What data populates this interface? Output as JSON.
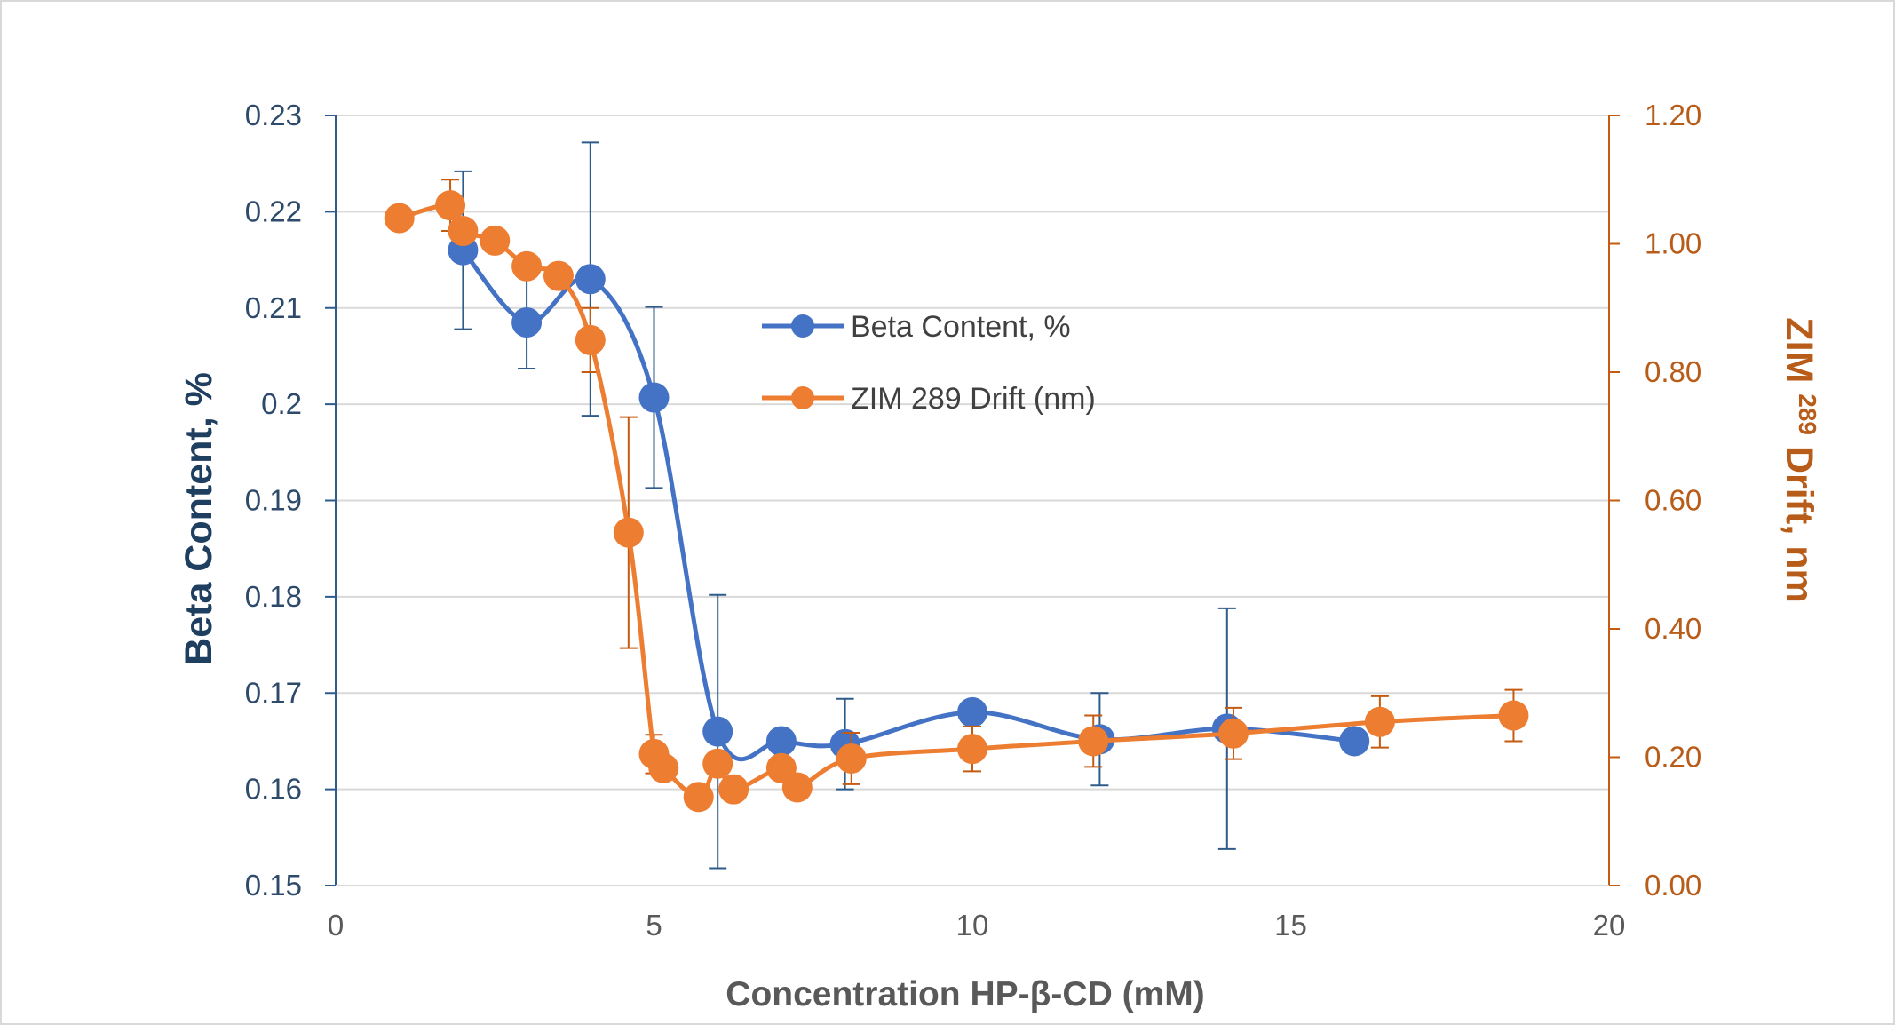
{
  "chart_data": {
    "type": "line",
    "title": "",
    "xlabel": "Concentration HP-β-CD (mM)",
    "ylabel_left": "Beta Content, %",
    "ylabel_right": "ZIM 289 Drift, nm",
    "ylabel_right_parts": {
      "prefix": "ZIM ",
      "superscript": "289",
      "suffix": " Drift, nm"
    },
    "xlim": [
      0,
      20
    ],
    "ylim_left": [
      0.15,
      0.23
    ],
    "ylim_right": [
      0.0,
      1.2
    ],
    "x_ticks": [
      "0",
      "5",
      "10",
      "15",
      "20"
    ],
    "y_left_ticks": [
      "0.15",
      "0.16",
      "0.17",
      "0.18",
      "0.19",
      "0.2",
      "0.21",
      "0.22",
      "0.23"
    ],
    "y_right_ticks": [
      "0.00",
      "0.20",
      "0.40",
      "0.60",
      "0.80",
      "1.00",
      "1.20"
    ],
    "grid": "horizontal",
    "legend_position": "center",
    "series": [
      {
        "name": "Beta Content, %",
        "axis": "left",
        "color": "#4472c4",
        "x": [
          2,
          3,
          4,
          5,
          6,
          7,
          8,
          10,
          12,
          14,
          16
        ],
        "y": [
          0.216,
          0.2085,
          0.213,
          0.2007,
          0.166,
          0.165,
          0.1647,
          0.168,
          0.1652,
          0.1663,
          0.165
        ],
        "error": [
          0.0082,
          0.0048,
          0.0142,
          0.0094,
          0.0142,
          null,
          0.0047,
          null,
          0.0048,
          0.0125,
          null
        ]
      },
      {
        "name": "ZIM 289 Drift (nm)",
        "axis": "right",
        "color": "#ed7d31",
        "error_color": "#c55a11",
        "x": [
          1.0,
          1.8,
          2.0,
          2.5,
          3.0,
          3.5,
          4.0,
          4.6,
          5.0,
          5.15,
          5.7,
          6.0,
          6.25,
          7.0,
          7.25,
          8.1,
          10.0,
          11.9,
          14.1,
          16.4,
          18.5
        ],
        "y": [
          1.04,
          1.06,
          1.02,
          1.005,
          0.965,
          0.95,
          0.85,
          0.55,
          0.205,
          0.183,
          0.138,
          0.19,
          0.15,
          0.183,
          0.153,
          0.198,
          0.213,
          0.225,
          0.237,
          0.255,
          0.265
        ],
        "error": [
          null,
          0.04,
          null,
          null,
          null,
          null,
          0.05,
          0.18,
          0.03,
          null,
          null,
          null,
          null,
          null,
          null,
          0.04,
          0.035,
          0.04,
          0.04,
          0.04,
          0.04
        ]
      }
    ]
  }
}
